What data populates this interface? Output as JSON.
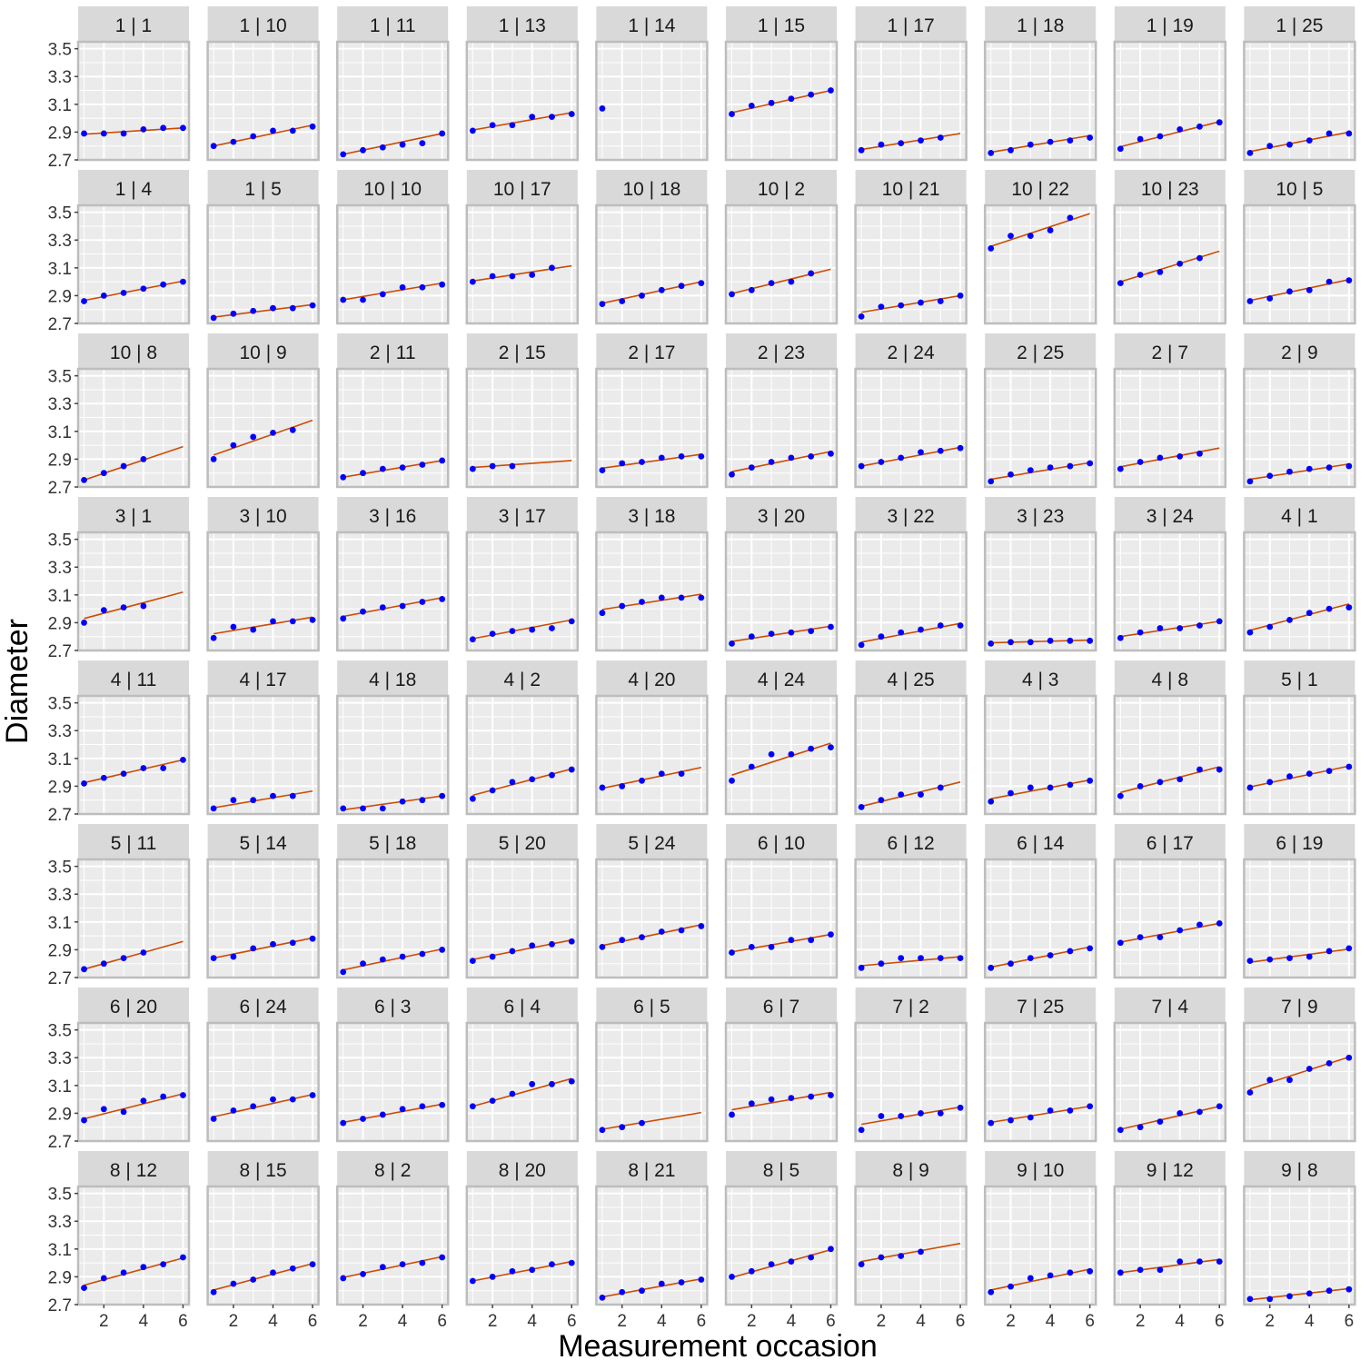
{
  "chart_data": {
    "type": "scatter",
    "subtype": "faceted scatter with fitted regression lines",
    "xlabel": "Measurement occasion",
    "ylabel": "Diameter",
    "xlim": [
      0.7,
      6.3
    ],
    "ylim": [
      2.7,
      3.55
    ],
    "xticks": [
      2,
      4,
      6
    ],
    "yticks": [
      2.7,
      2.9,
      3.1,
      3.3,
      3.5
    ],
    "ytick_labels": [
      "2.7",
      "2.9",
      "3.1",
      "3.3",
      "3.5"
    ],
    "grid": true,
    "point_color": "#0000ff",
    "line_color": "#cc4c02",
    "panel_background": "#ebebeb",
    "strip_background": "#d9d9d9",
    "panels": [
      {
        "label": "1 | 1",
        "points": [
          2.89,
          2.89,
          2.89,
          2.92,
          2.93,
          2.93
        ],
        "fit": [
          2.885,
          2.93
        ]
      },
      {
        "label": "1 | 10",
        "points": [
          2.8,
          2.83,
          2.87,
          2.91,
          2.91,
          2.94
        ],
        "fit": [
          2.8,
          2.95
        ]
      },
      {
        "label": "1 | 11",
        "points": [
          2.74,
          2.77,
          2.79,
          2.81,
          2.82,
          2.89
        ],
        "fit": [
          2.74,
          2.89
        ]
      },
      {
        "label": "1 | 13",
        "points": [
          2.91,
          2.95,
          2.95,
          3.01,
          3.01,
          3.03
        ],
        "fit": [
          2.915,
          3.04
        ]
      },
      {
        "label": "1 | 14",
        "points": [
          3.07
        ],
        "fit": null
      },
      {
        "label": "1 | 15",
        "points": [
          3.03,
          3.09,
          3.11,
          3.14,
          3.17,
          3.2
        ],
        "fit": [
          3.04,
          3.2
        ]
      },
      {
        "label": "1 | 17",
        "points": [
          2.77,
          2.81,
          2.82,
          2.84,
          2.86
        ],
        "fit": [
          2.775,
          2.89
        ]
      },
      {
        "label": "1 | 18",
        "points": [
          2.75,
          2.77,
          2.81,
          2.83,
          2.84,
          2.86
        ],
        "fit": [
          2.755,
          2.875
        ]
      },
      {
        "label": "1 | 19",
        "points": [
          2.78,
          2.85,
          2.87,
          2.92,
          2.94,
          2.97
        ],
        "fit": [
          2.795,
          2.975
        ]
      },
      {
        "label": "1 | 25",
        "points": [
          2.75,
          2.8,
          2.81,
          2.84,
          2.89,
          2.89
        ],
        "fit": [
          2.76,
          2.9
        ]
      },
      {
        "label": "1 | 4",
        "points": [
          2.86,
          2.9,
          2.92,
          2.95,
          2.98,
          3.0
        ],
        "fit": [
          2.865,
          3.005
        ]
      },
      {
        "label": "1 | 5",
        "points": [
          2.74,
          2.77,
          2.79,
          2.81,
          2.81,
          2.83
        ],
        "fit": [
          2.745,
          2.835
        ]
      },
      {
        "label": "10 | 10",
        "points": [
          2.87,
          2.87,
          2.91,
          2.96,
          2.96,
          2.98
        ],
        "fit": [
          2.87,
          2.99
        ]
      },
      {
        "label": "10 | 17",
        "points": [
          3.0,
          3.04,
          3.04,
          3.05,
          3.1
        ],
        "fit": [
          3.005,
          3.115
        ]
      },
      {
        "label": "10 | 18",
        "points": [
          2.84,
          2.86,
          2.9,
          2.94,
          2.97,
          2.99
        ],
        "fit": [
          2.845,
          3.0
        ]
      },
      {
        "label": "10 | 2",
        "points": [
          2.91,
          2.94,
          2.99,
          3.0,
          3.06
        ],
        "fit": [
          2.915,
          3.09
        ]
      },
      {
        "label": "10 | 21",
        "points": [
          2.75,
          2.82,
          2.83,
          2.85,
          2.86,
          2.9
        ],
        "fit": [
          2.78,
          2.9
        ]
      },
      {
        "label": "10 | 22",
        "points": [
          3.24,
          3.33,
          3.33,
          3.37,
          3.46
        ],
        "fit": [
          3.255,
          3.49
        ]
      },
      {
        "label": "10 | 23",
        "points": [
          2.99,
          3.05,
          3.07,
          3.13,
          3.17
        ],
        "fit": [
          3.0,
          3.22
        ]
      },
      {
        "label": "10 | 5",
        "points": [
          2.86,
          2.88,
          2.93,
          2.94,
          3.0,
          3.01
        ],
        "fit": [
          2.865,
          3.015
        ]
      },
      {
        "label": "10 | 8",
        "points": [
          2.75,
          2.8,
          2.85,
          2.9
        ],
        "fit": [
          2.75,
          2.99
        ]
      },
      {
        "label": "10 | 9",
        "points": [
          2.9,
          3.0,
          3.06,
          3.09,
          3.11
        ],
        "fit": [
          2.93,
          3.18
        ]
      },
      {
        "label": "2 | 11",
        "points": [
          2.77,
          2.8,
          2.83,
          2.84,
          2.86,
          2.89
        ],
        "fit": [
          2.77,
          2.89
        ]
      },
      {
        "label": "2 | 15",
        "points": [
          2.83,
          2.85,
          2.85
        ],
        "fit": [
          2.84,
          2.89
        ]
      },
      {
        "label": "2 | 17",
        "points": [
          2.82,
          2.87,
          2.88,
          2.91,
          2.92,
          2.92
        ],
        "fit": [
          2.835,
          2.935
        ]
      },
      {
        "label": "2 | 23",
        "points": [
          2.79,
          2.84,
          2.88,
          2.91,
          2.92,
          2.94
        ],
        "fit": [
          2.81,
          2.955
        ]
      },
      {
        "label": "2 | 24",
        "points": [
          2.85,
          2.88,
          2.91,
          2.95,
          2.96,
          2.98
        ],
        "fit": [
          2.85,
          2.985
        ]
      },
      {
        "label": "2 | 25",
        "points": [
          2.74,
          2.79,
          2.82,
          2.84,
          2.85,
          2.87
        ],
        "fit": [
          2.755,
          2.875
        ]
      },
      {
        "label": "2 | 7",
        "points": [
          2.83,
          2.88,
          2.91,
          2.92,
          2.94
        ],
        "fit": [
          2.845,
          2.98
        ]
      },
      {
        "label": "2 | 9",
        "points": [
          2.74,
          2.78,
          2.81,
          2.83,
          2.84,
          2.85
        ],
        "fit": [
          2.755,
          2.865
        ]
      },
      {
        "label": "3 | 1",
        "points": [
          2.9,
          2.99,
          3.01,
          3.02
        ],
        "fit": [
          2.93,
          3.12
        ]
      },
      {
        "label": "3 | 10",
        "points": [
          2.79,
          2.87,
          2.85,
          2.91,
          2.91,
          2.92
        ],
        "fit": [
          2.82,
          2.94
        ]
      },
      {
        "label": "3 | 16",
        "points": [
          2.93,
          2.98,
          3.01,
          3.02,
          3.05,
          3.07
        ],
        "fit": [
          2.945,
          3.08
        ]
      },
      {
        "label": "3 | 17",
        "points": [
          2.78,
          2.82,
          2.84,
          2.85,
          2.86,
          2.91
        ],
        "fit": [
          2.785,
          2.92
        ]
      },
      {
        "label": "3 | 18",
        "points": [
          2.97,
          3.02,
          3.05,
          3.08,
          3.08,
          3.08
        ],
        "fit": [
          2.995,
          3.105
        ]
      },
      {
        "label": "3 | 20",
        "points": [
          2.75,
          2.8,
          2.82,
          2.83,
          2.84,
          2.87
        ],
        "fit": [
          2.765,
          2.875
        ]
      },
      {
        "label": "3 | 22",
        "points": [
          2.74,
          2.8,
          2.83,
          2.85,
          2.88,
          2.88
        ],
        "fit": [
          2.76,
          2.895
        ]
      },
      {
        "label": "3 | 23",
        "points": [
          2.75,
          2.76,
          2.76,
          2.77,
          2.77,
          2.77
        ],
        "fit": [
          2.755,
          2.775
        ]
      },
      {
        "label": "3 | 24",
        "points": [
          2.79,
          2.83,
          2.86,
          2.86,
          2.88,
          2.91
        ],
        "fit": [
          2.8,
          2.91
        ]
      },
      {
        "label": "4 | 1",
        "points": [
          2.83,
          2.87,
          2.92,
          2.97,
          3.0,
          3.01
        ],
        "fit": [
          2.845,
          3.035
        ]
      },
      {
        "label": "4 | 11",
        "points": [
          2.92,
          2.96,
          2.99,
          3.03,
          3.03,
          3.09
        ],
        "fit": [
          2.925,
          3.09
        ]
      },
      {
        "label": "4 | 17",
        "points": [
          2.74,
          2.8,
          2.8,
          2.83,
          2.83
        ],
        "fit": [
          2.745,
          2.865
        ]
      },
      {
        "label": "4 | 18",
        "points": [
          2.74,
          2.74,
          2.74,
          2.79,
          2.8,
          2.83
        ],
        "fit": [
          2.73,
          2.83
        ]
      },
      {
        "label": "4 | 2",
        "points": [
          2.81,
          2.87,
          2.93,
          2.95,
          2.98,
          3.02
        ],
        "fit": [
          2.835,
          3.025
        ]
      },
      {
        "label": "4 | 20",
        "points": [
          2.89,
          2.9,
          2.94,
          2.99,
          2.99
        ],
        "fit": [
          2.885,
          3.035
        ]
      },
      {
        "label": "4 | 24",
        "points": [
          2.94,
          3.04,
          3.13,
          3.13,
          3.17,
          3.18
        ],
        "fit": [
          2.98,
          3.21
        ]
      },
      {
        "label": "4 | 25",
        "points": [
          2.75,
          2.8,
          2.84,
          2.84,
          2.89
        ],
        "fit": [
          2.755,
          2.93
        ]
      },
      {
        "label": "4 | 3",
        "points": [
          2.79,
          2.85,
          2.89,
          2.89,
          2.91,
          2.94
        ],
        "fit": [
          2.81,
          2.945
        ]
      },
      {
        "label": "4 | 8",
        "points": [
          2.83,
          2.9,
          2.93,
          2.95,
          3.02,
          3.02
        ],
        "fit": [
          2.855,
          3.04
        ]
      },
      {
        "label": "5 | 1",
        "points": [
          2.89,
          2.93,
          2.97,
          2.99,
          3.01,
          3.04
        ],
        "fit": [
          2.895,
          3.045
        ]
      },
      {
        "label": "5 | 11",
        "points": [
          2.76,
          2.8,
          2.84,
          2.88
        ],
        "fit": [
          2.76,
          2.96
        ]
      },
      {
        "label": "5 | 14",
        "points": [
          2.84,
          2.85,
          2.91,
          2.94,
          2.95,
          2.98
        ],
        "fit": [
          2.84,
          2.985
        ]
      },
      {
        "label": "5 | 18",
        "points": [
          2.74,
          2.8,
          2.83,
          2.85,
          2.87,
          2.9
        ],
        "fit": [
          2.755,
          2.905
        ]
      },
      {
        "label": "5 | 20",
        "points": [
          2.82,
          2.85,
          2.89,
          2.93,
          2.94,
          2.96
        ],
        "fit": [
          2.83,
          2.97
        ]
      },
      {
        "label": "5 | 24",
        "points": [
          2.92,
          2.97,
          2.99,
          3.03,
          3.04,
          3.07
        ],
        "fit": [
          2.93,
          3.08
        ]
      },
      {
        "label": "6 | 10",
        "points": [
          2.88,
          2.92,
          2.92,
          2.97,
          2.97,
          3.01
        ],
        "fit": [
          2.885,
          3.01
        ]
      },
      {
        "label": "6 | 12",
        "points": [
          2.77,
          2.8,
          2.84,
          2.84,
          2.84,
          2.84
        ],
        "fit": [
          2.785,
          2.85
        ]
      },
      {
        "label": "6 | 14",
        "points": [
          2.77,
          2.8,
          2.84,
          2.86,
          2.89,
          2.91
        ],
        "fit": [
          2.775,
          2.92
        ]
      },
      {
        "label": "6 | 17",
        "points": [
          2.95,
          2.99,
          2.99,
          3.04,
          3.08,
          3.09
        ],
        "fit": [
          2.955,
          3.09
        ]
      },
      {
        "label": "6 | 19",
        "points": [
          2.82,
          2.83,
          2.84,
          2.85,
          2.89,
          2.91
        ],
        "fit": [
          2.81,
          2.905
        ]
      },
      {
        "label": "6 | 20",
        "points": [
          2.85,
          2.93,
          2.91,
          2.99,
          3.02,
          3.03
        ],
        "fit": [
          2.86,
          3.04
        ]
      },
      {
        "label": "6 | 24",
        "points": [
          2.86,
          2.92,
          2.95,
          3.0,
          3.0,
          3.03
        ],
        "fit": [
          2.875,
          3.035
        ]
      },
      {
        "label": "6 | 3",
        "points": [
          2.83,
          2.86,
          2.89,
          2.93,
          2.95,
          2.96
        ],
        "fit": [
          2.835,
          2.965
        ]
      },
      {
        "label": "6 | 4",
        "points": [
          2.95,
          2.99,
          3.04,
          3.11,
          3.11,
          3.13
        ],
        "fit": [
          2.95,
          3.15
        ]
      },
      {
        "label": "6 | 5",
        "points": [
          2.78,
          2.8,
          2.83
        ],
        "fit": [
          2.785,
          2.905
        ]
      },
      {
        "label": "6 | 7",
        "points": [
          2.89,
          2.97,
          3.0,
          3.01,
          3.02,
          3.03
        ],
        "fit": [
          2.925,
          3.05
        ]
      },
      {
        "label": "7 | 2",
        "points": [
          2.78,
          2.88,
          2.88,
          2.9,
          2.9,
          2.94
        ],
        "fit": [
          2.82,
          2.945
        ]
      },
      {
        "label": "7 | 25",
        "points": [
          2.83,
          2.85,
          2.87,
          2.92,
          2.92,
          2.95
        ],
        "fit": [
          2.835,
          2.95
        ]
      },
      {
        "label": "7 | 4",
        "points": [
          2.78,
          2.8,
          2.84,
          2.9,
          2.91,
          2.95
        ],
        "fit": [
          2.785,
          2.95
        ]
      },
      {
        "label": "7 | 9",
        "points": [
          3.05,
          3.14,
          3.14,
          3.22,
          3.26,
          3.3
        ],
        "fit": [
          3.075,
          3.305
        ]
      },
      {
        "label": "8 | 12",
        "points": [
          2.82,
          2.89,
          2.93,
          2.97,
          2.99,
          3.04
        ],
        "fit": [
          2.84,
          3.035
        ]
      },
      {
        "label": "8 | 15",
        "points": [
          2.79,
          2.85,
          2.88,
          2.93,
          2.96,
          2.99
        ],
        "fit": [
          2.805,
          2.995
        ]
      },
      {
        "label": "8 | 2",
        "points": [
          2.89,
          2.92,
          2.97,
          2.99,
          3.0,
          3.04
        ],
        "fit": [
          2.895,
          3.045
        ]
      },
      {
        "label": "8 | 20",
        "points": [
          2.87,
          2.9,
          2.94,
          2.95,
          2.99,
          3.0
        ],
        "fit": [
          2.87,
          3.01
        ]
      },
      {
        "label": "8 | 21",
        "points": [
          2.75,
          2.79,
          2.8,
          2.85,
          2.86,
          2.88
        ],
        "fit": [
          2.755,
          2.885
        ]
      },
      {
        "label": "8 | 5",
        "points": [
          2.9,
          2.94,
          2.99,
          3.01,
          3.04,
          3.1
        ],
        "fit": [
          2.895,
          3.095
        ]
      },
      {
        "label": "8 | 9",
        "points": [
          2.99,
          3.04,
          3.05,
          3.08
        ],
        "fit": [
          3.01,
          3.14
        ]
      },
      {
        "label": "9 | 10",
        "points": [
          2.79,
          2.83,
          2.89,
          2.91,
          2.93,
          2.94
        ],
        "fit": [
          2.805,
          2.955
        ]
      },
      {
        "label": "9 | 12",
        "points": [
          2.93,
          2.95,
          2.95,
          3.01,
          3.01,
          3.01
        ],
        "fit": [
          2.93,
          3.025
        ]
      },
      {
        "label": "9 | 8",
        "points": [
          2.74,
          2.74,
          2.76,
          2.78,
          2.8,
          2.81
        ],
        "fit": [
          2.735,
          2.815
        ]
      }
    ]
  }
}
